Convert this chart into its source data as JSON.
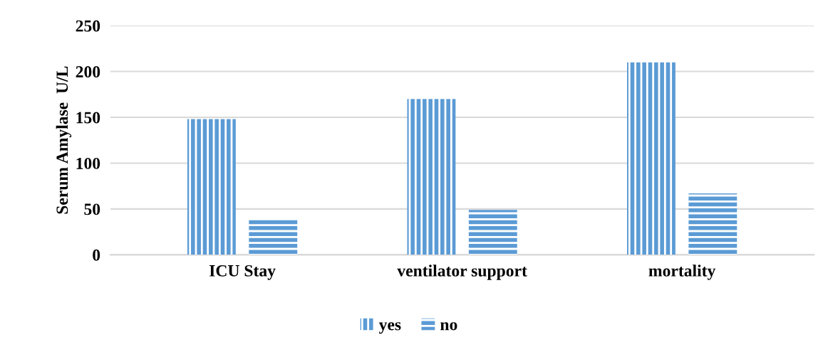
{
  "chart_data": {
    "type": "bar",
    "ylabel": "Serum Amylase  U/L",
    "categories": [
      "ICU Stay",
      "ventilator support",
      "mortality"
    ],
    "series": [
      {
        "name": "yes",
        "color": "#5b9bd5",
        "values": [
          148,
          170,
          210
        ]
      },
      {
        "name": "no",
        "color": "#5b9bd5",
        "values": [
          39,
          49,
          67
        ]
      }
    ],
    "ylim": [
      0,
      250
    ],
    "yticks": [
      0,
      50,
      100,
      150,
      200,
      250
    ],
    "grid": "y",
    "legend": "bottom"
  }
}
